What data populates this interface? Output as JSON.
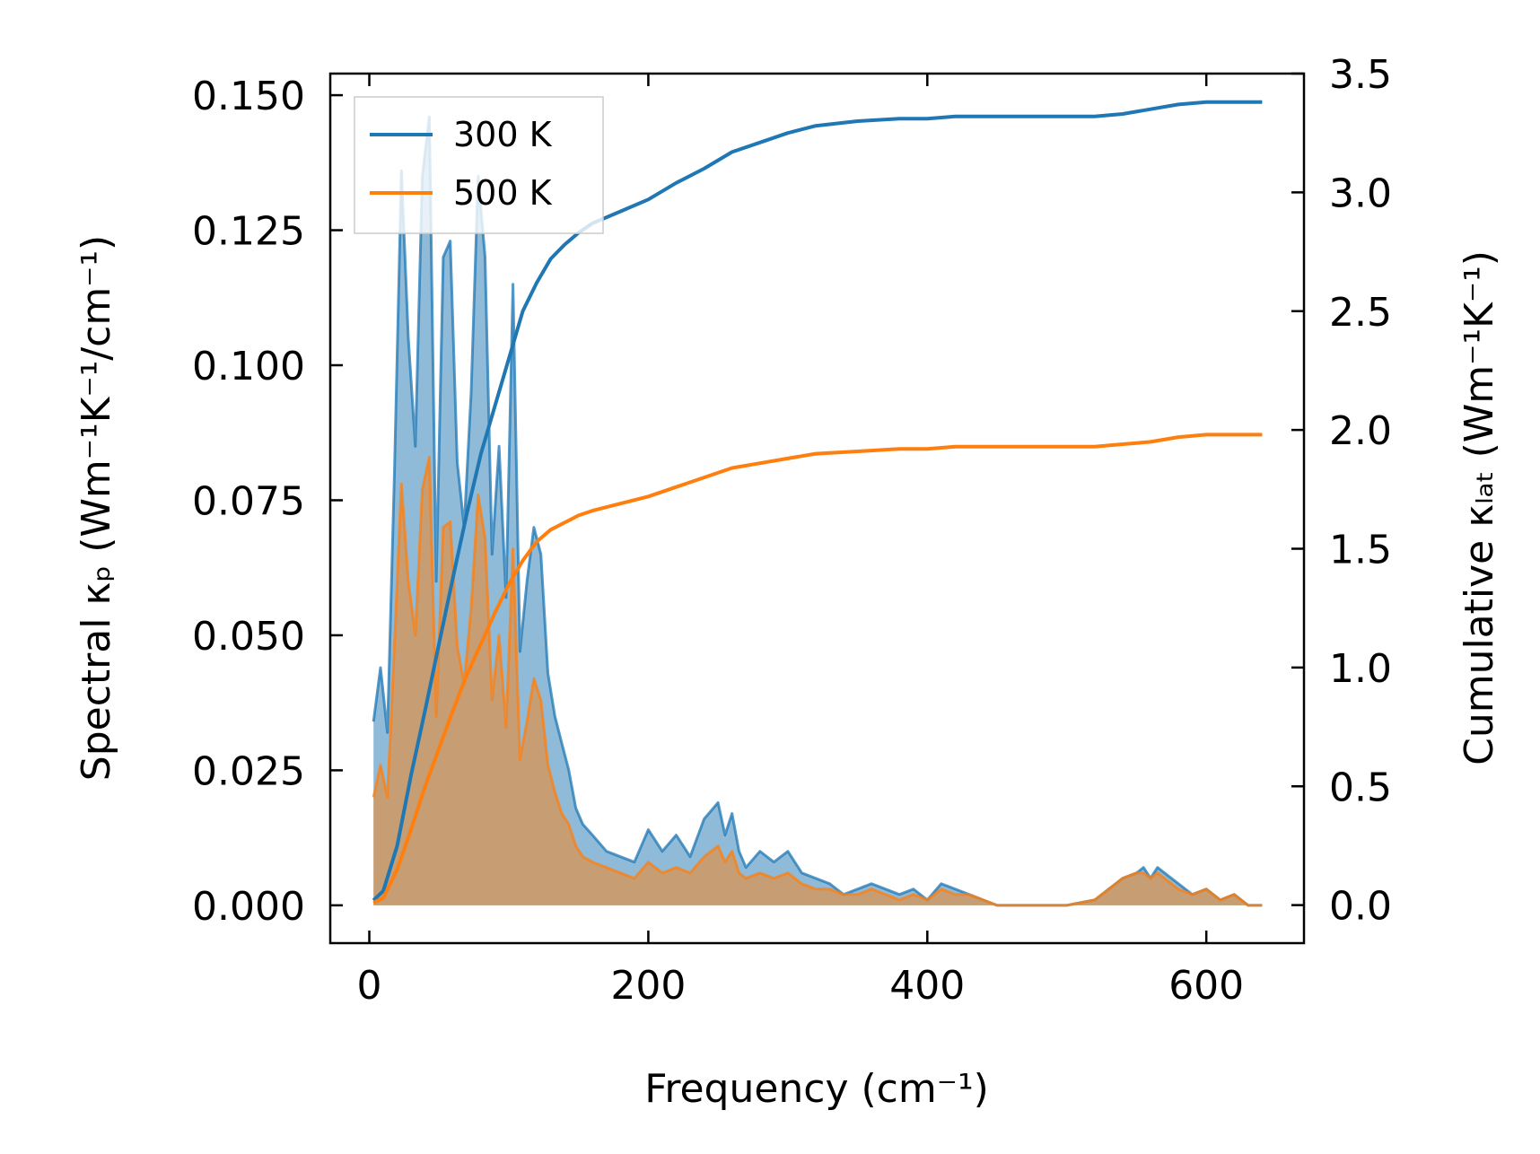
{
  "chart_data": {
    "type": "area",
    "title": "",
    "xlabel": "Frequency (cm⁻¹)",
    "ylabel_left": "Spectral κₚ (Wm⁻¹K⁻¹/cm⁻¹)",
    "ylabel_right": "Cumulative κₗₐₜ (Wm⁻¹K⁻¹)",
    "xlim": [
      -28,
      670
    ],
    "ylim_left": [
      -0.007,
      0.154
    ],
    "ylim_right": [
      -0.16,
      3.5
    ],
    "xticks": [
      0,
      200,
      400,
      600
    ],
    "xtick_labels": [
      "0",
      "200",
      "400",
      "600"
    ],
    "yticks_left": [
      0,
      0.025,
      0.05,
      0.075,
      0.1,
      0.125,
      0.15
    ],
    "ytick_labels_left": [
      "0.000",
      "0.025",
      "0.050",
      "0.075",
      "0.100",
      "0.125",
      "0.150"
    ],
    "yticks_right": [
      0,
      0.5,
      1,
      1.5,
      2,
      2.5,
      3,
      3.5
    ],
    "ytick_labels_right": [
      "0.0",
      "0.5",
      "1.0",
      "1.5",
      "2.0",
      "2.5",
      "3.0",
      "3.5"
    ],
    "legend_position": "top-left",
    "legend": [
      {
        "label": "300 K",
        "color": "#1f77b4"
      },
      {
        "label": "500 K",
        "color": "#ff7f0e"
      }
    ],
    "spectral": [
      {
        "name": "300 K",
        "axis": "left",
        "color": "#1f77b4",
        "x": [
          3,
          8,
          13,
          18,
          23,
          28,
          33,
          38,
          43,
          48,
          53,
          58,
          63,
          68,
          73,
          78,
          83,
          88,
          93,
          98,
          103,
          108,
          113,
          118,
          123,
          128,
          133,
          138,
          143,
          148,
          153,
          160,
          170,
          180,
          190,
          200,
          210,
          220,
          230,
          240,
          250,
          255,
          260,
          265,
          270,
          280,
          290,
          300,
          310,
          320,
          330,
          340,
          350,
          360,
          370,
          380,
          390,
          400,
          410,
          420,
          430,
          440,
          450,
          460,
          500,
          520,
          530,
          540,
          550,
          555,
          560,
          565,
          570,
          575,
          580,
          590,
          600,
          610,
          620,
          630,
          640
        ],
        "y": [
          0.034,
          0.044,
          0.032,
          0.08,
          0.136,
          0.105,
          0.085,
          0.135,
          0.146,
          0.06,
          0.12,
          0.123,
          0.082,
          0.07,
          0.095,
          0.135,
          0.12,
          0.065,
          0.085,
          0.057,
          0.115,
          0.047,
          0.06,
          0.07,
          0.065,
          0.043,
          0.035,
          0.03,
          0.025,
          0.018,
          0.015,
          0.013,
          0.01,
          0.009,
          0.008,
          0.014,
          0.01,
          0.013,
          0.009,
          0.016,
          0.019,
          0.013,
          0.017,
          0.01,
          0.007,
          0.01,
          0.008,
          0.01,
          0.006,
          0.005,
          0.004,
          0.002,
          0.003,
          0.004,
          0.003,
          0.002,
          0.003,
          0.001,
          0.004,
          0.003,
          0.002,
          0.001,
          0,
          0,
          0,
          0.001,
          0.003,
          0.005,
          0.006,
          0.007,
          0.005,
          0.007,
          0.006,
          0.005,
          0.004,
          0.002,
          0.003,
          0.001,
          0.002,
          0,
          0
        ]
      },
      {
        "name": "500 K",
        "axis": "left",
        "color": "#ff7f0e",
        "x": [
          3,
          8,
          13,
          18,
          23,
          28,
          33,
          38,
          43,
          48,
          53,
          58,
          63,
          68,
          73,
          78,
          83,
          88,
          93,
          98,
          103,
          108,
          113,
          118,
          123,
          128,
          133,
          138,
          143,
          148,
          153,
          160,
          170,
          180,
          190,
          200,
          210,
          220,
          230,
          240,
          250,
          255,
          260,
          265,
          270,
          280,
          290,
          300,
          310,
          320,
          330,
          340,
          350,
          360,
          370,
          380,
          390,
          400,
          410,
          420,
          430,
          440,
          450,
          460,
          500,
          520,
          530,
          540,
          550,
          555,
          560,
          565,
          570,
          575,
          580,
          590,
          600,
          610,
          620,
          630,
          640
        ],
        "y": [
          0.02,
          0.026,
          0.02,
          0.048,
          0.078,
          0.06,
          0.05,
          0.077,
          0.083,
          0.035,
          0.07,
          0.071,
          0.048,
          0.041,
          0.055,
          0.076,
          0.068,
          0.038,
          0.05,
          0.033,
          0.066,
          0.027,
          0.034,
          0.042,
          0.038,
          0.026,
          0.021,
          0.017,
          0.015,
          0.011,
          0.009,
          0.008,
          0.007,
          0.006,
          0.005,
          0.008,
          0.006,
          0.007,
          0.006,
          0.009,
          0.011,
          0.008,
          0.01,
          0.006,
          0.005,
          0.006,
          0.005,
          0.006,
          0.004,
          0.003,
          0.003,
          0.002,
          0.002,
          0.003,
          0.002,
          0.001,
          0.002,
          0.001,
          0.003,
          0.002,
          0.002,
          0.001,
          0,
          0,
          0,
          0.001,
          0.003,
          0.005,
          0.006,
          0.006,
          0.005,
          0.006,
          0.005,
          0.004,
          0.003,
          0.002,
          0.003,
          0.001,
          0.002,
          0,
          0
        ]
      }
    ],
    "cumulative": [
      {
        "name": "300 K",
        "axis": "right",
        "color": "#1f77b4",
        "x": [
          3,
          10,
          20,
          30,
          40,
          50,
          60,
          70,
          80,
          90,
          100,
          110,
          120,
          130,
          140,
          150,
          160,
          180,
          200,
          220,
          240,
          260,
          280,
          300,
          320,
          350,
          380,
          400,
          420,
          440,
          460,
          500,
          520,
          540,
          560,
          580,
          600,
          620,
          640
        ],
        "y": [
          0.02,
          0.06,
          0.25,
          0.55,
          0.82,
          1.1,
          1.38,
          1.65,
          1.9,
          2.1,
          2.3,
          2.5,
          2.62,
          2.72,
          2.78,
          2.83,
          2.87,
          2.92,
          2.97,
          3.04,
          3.1,
          3.17,
          3.21,
          3.25,
          3.28,
          3.3,
          3.31,
          3.31,
          3.32,
          3.32,
          3.32,
          3.32,
          3.32,
          3.33,
          3.35,
          3.37,
          3.38,
          3.38,
          3.38
        ]
      },
      {
        "name": "500 K",
        "axis": "right",
        "color": "#ff7f0e",
        "x": [
          3,
          10,
          20,
          30,
          40,
          50,
          60,
          70,
          80,
          90,
          100,
          110,
          120,
          130,
          140,
          150,
          160,
          180,
          200,
          220,
          240,
          260,
          280,
          300,
          320,
          350,
          380,
          400,
          420,
          440,
          460,
          500,
          520,
          540,
          560,
          580,
          600,
          620,
          640
        ],
        "y": [
          0.01,
          0.03,
          0.15,
          0.32,
          0.5,
          0.66,
          0.82,
          0.97,
          1.1,
          1.23,
          1.35,
          1.45,
          1.53,
          1.58,
          1.61,
          1.64,
          1.66,
          1.69,
          1.72,
          1.76,
          1.8,
          1.84,
          1.86,
          1.88,
          1.9,
          1.91,
          1.92,
          1.92,
          1.93,
          1.93,
          1.93,
          1.93,
          1.93,
          1.94,
          1.95,
          1.97,
          1.98,
          1.98,
          1.98
        ]
      }
    ]
  }
}
